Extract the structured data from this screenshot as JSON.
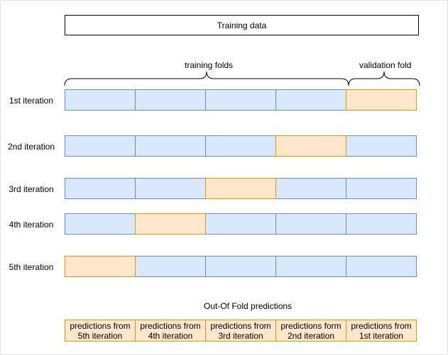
{
  "training_data_label": "Training data",
  "training_folds_label": "training folds",
  "validation_fold_label": "validation fold",
  "iterations": [
    {
      "label": "1st iteration",
      "cells": [
        "train",
        "train",
        "train",
        "train",
        "valid"
      ]
    },
    {
      "label": "2nd iteration",
      "cells": [
        "train",
        "train",
        "train",
        "valid",
        "train"
      ]
    },
    {
      "label": "3rd iteration",
      "cells": [
        "train",
        "train",
        "valid",
        "train",
        "train"
      ]
    },
    {
      "label": "4th iteration",
      "cells": [
        "train",
        "valid",
        "train",
        "train",
        "train"
      ]
    },
    {
      "label": "5th iteration",
      "cells": [
        "valid",
        "train",
        "train",
        "train",
        "train"
      ]
    }
  ],
  "oof_title": "Out-Of Fold predictions",
  "oof_cells": [
    "predictions from 5th iteration",
    "predictions from 4th iteration",
    "predictions from 3rd iteration",
    "predictions form 2nd iteration",
    "predictions from 1st iteration"
  ],
  "colors": {
    "train_fill": "#dae8fc",
    "train_border": "#6c8ebf",
    "valid_fill": "#ffe6cc",
    "valid_border": "#d79b00"
  }
}
